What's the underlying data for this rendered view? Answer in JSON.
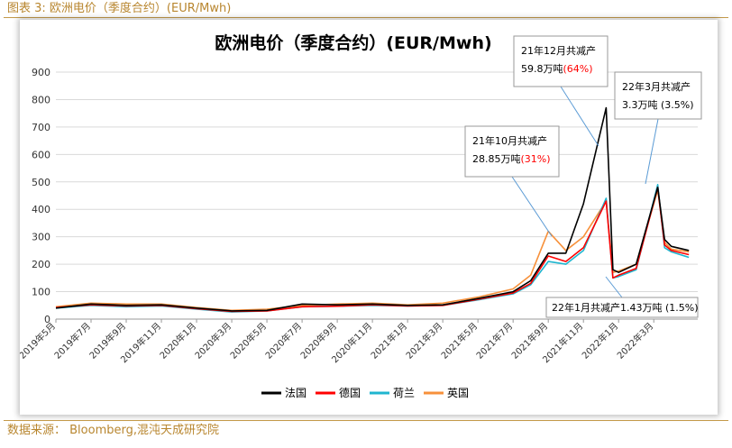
{
  "figure": {
    "title": "图表 3: 欧洲电价（季度合约）(EUR/Mwh)",
    "source": "数据来源： Bloomberg,混沌天成研究院"
  },
  "chart_data": {
    "type": "line",
    "title": "欧洲电价（季度合约）(EUR/Mwh)",
    "xlabel": "",
    "ylabel": "",
    "ylim": [
      0,
      900
    ],
    "yticks": [
      0,
      100,
      200,
      300,
      400,
      500,
      600,
      700,
      800,
      900
    ],
    "x_ticklabels": [
      "2019年5月",
      "2019年7月",
      "2019年9月",
      "2019年11月",
      "2020年1月",
      "2020年3月",
      "2020年5月",
      "2020年7月",
      "2020年9月",
      "2020年11月",
      "2021年1月",
      "2021年3月",
      "2021年5月",
      "2021年7月",
      "2021年9月",
      "2021年11月",
      "2022年1月",
      "2022年3月"
    ],
    "x": [
      "2019-05",
      "2019-07",
      "2019-09",
      "2019-11",
      "2020-01",
      "2020-03",
      "2020-05",
      "2020-07",
      "2020-09",
      "2020-11",
      "2021-01",
      "2021-03",
      "2021-05",
      "2021-07",
      "2021-08",
      "2021-09",
      "2021-10",
      "2021-11",
      "2021-12-10",
      "2021-12-22",
      "2022-01",
      "2022-02",
      "2022-03-08",
      "2022-03-20",
      "2022-04",
      "2022-05"
    ],
    "grid": true,
    "legend_position": "bottom",
    "series": [
      {
        "name": "法国",
        "color": "#000000",
        "values": [
          40,
          55,
          50,
          52,
          40,
          30,
          32,
          55,
          52,
          55,
          50,
          52,
          75,
          100,
          140,
          240,
          240,
          420,
          770,
          180,
          170,
          200,
          480,
          290,
          265,
          250
        ]
      },
      {
        "name": "德国",
        "color": "#ff0000",
        "values": [
          42,
          52,
          48,
          50,
          38,
          28,
          30,
          45,
          47,
          52,
          48,
          50,
          72,
          95,
          130,
          230,
          210,
          260,
          430,
          150,
          160,
          185,
          480,
          270,
          250,
          235
        ]
      },
      {
        "name": "荷兰",
        "color": "#1fb5cf",
        "values": [
          40,
          50,
          45,
          48,
          36,
          26,
          30,
          45,
          47,
          50,
          48,
          50,
          70,
          92,
          125,
          210,
          200,
          250,
          440,
          150,
          155,
          180,
          490,
          260,
          245,
          225
        ]
      },
      {
        "name": "英国",
        "color": "#f7913b",
        "values": [
          45,
          58,
          55,
          55,
          42,
          32,
          36,
          50,
          55,
          58,
          52,
          58,
          80,
          110,
          160,
          320,
          250,
          300,
          430,
          170,
          175,
          200,
          470,
          280,
          255,
          245
        ]
      }
    ],
    "annotations": [
      {
        "line1": "21年10月共减产",
        "line2": "28.85万吨",
        "highlight": "(31%)",
        "highlight_color": "#ff0000"
      },
      {
        "line1": "21年12月共减产",
        "line2": "59.8万吨",
        "highlight": "(64%)",
        "highlight_color": "#ff0000"
      },
      {
        "line1": "22年3月共减产",
        "line2": "3.3万吨 (3.5%)",
        "highlight": "",
        "highlight_color": "#000000"
      },
      {
        "line1": "22年1月共减产1.43万吨 (1.5%)",
        "line2": "",
        "highlight": "",
        "highlight_color": "#000000"
      }
    ]
  }
}
